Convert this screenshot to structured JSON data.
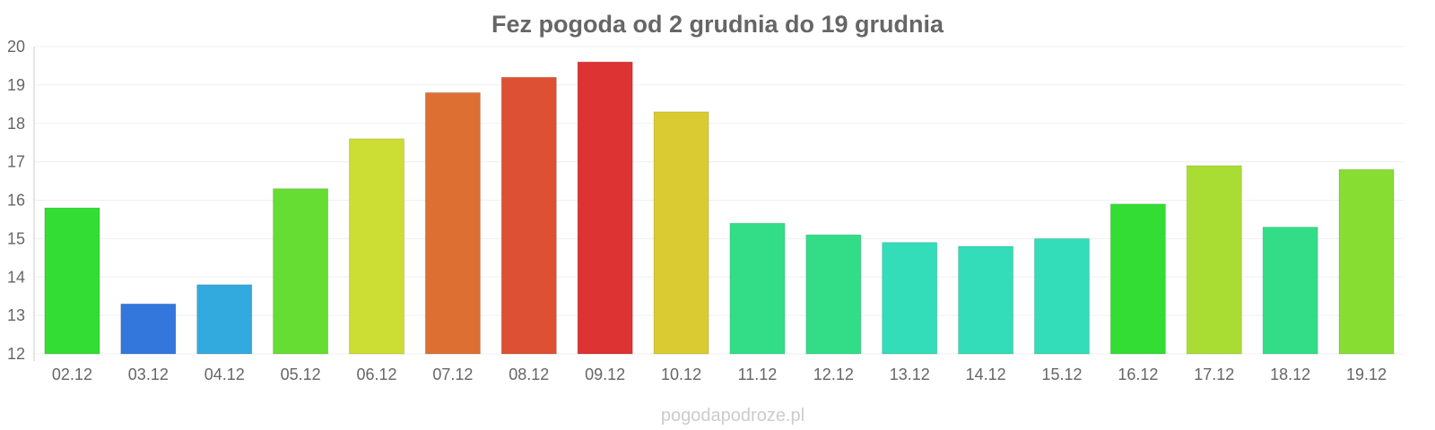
{
  "chart_data": {
    "type": "bar",
    "title": "Fez pogoda od 2 grudnia do 19 grudnia",
    "xlabel": "",
    "ylabel": "",
    "ylim": [
      12,
      20
    ],
    "yticks": [
      12,
      13,
      14,
      15,
      16,
      17,
      18,
      19,
      20
    ],
    "grid": true,
    "legend": "none",
    "categories": [
      "02.12",
      "03.12",
      "04.12",
      "05.12",
      "06.12",
      "07.12",
      "08.12",
      "09.12",
      "10.12",
      "11.12",
      "12.12",
      "13.12",
      "14.12",
      "15.12",
      "16.12",
      "17.12",
      "18.12",
      "19.12"
    ],
    "values": [
      15.8,
      13.3,
      13.8,
      16.3,
      17.6,
      18.8,
      19.2,
      19.6,
      18.3,
      15.4,
      15.1,
      14.9,
      14.8,
      15.0,
      15.9,
      16.9,
      15.3,
      16.8
    ],
    "colors": [
      "#33dd33",
      "#3377dd",
      "#33aadd",
      "#66dd33",
      "#ccdd33",
      "#dd6f33",
      "#dd5033",
      "#dd3333",
      "#dbcb33",
      "#33dd88",
      "#33dd88",
      "#33ddb9",
      "#33ddb9",
      "#33ddb9",
      "#33dd33",
      "#aadd33",
      "#33dd88",
      "#88dd33"
    ]
  },
  "watermark": "pogodapodroze.pl"
}
